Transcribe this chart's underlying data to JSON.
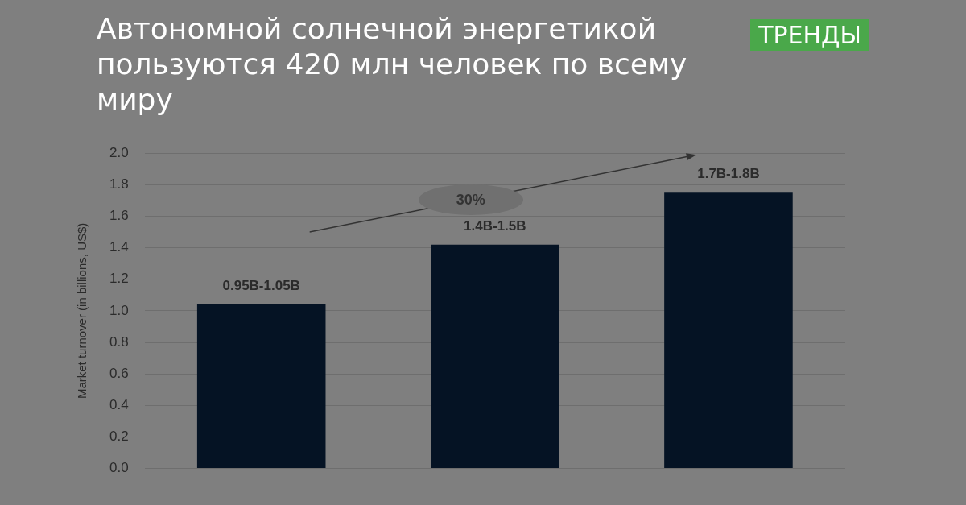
{
  "chart_data": {
    "type": "bar",
    "title": "Автономной солнечной энергетикой пользуются 420 млн человек по всему миру",
    "ylabel": "Market turnover (in billions, US$)",
    "categories": [
      null,
      null,
      null
    ],
    "values": [
      1.04,
      1.42,
      1.75
    ],
    "color": "#051324",
    "ylim": [
      0,
      2
    ],
    "yticks": [
      {
        "value": 0,
        "label": "0.0"
      },
      0.2,
      0.4,
      0.6,
      0.8,
      {
        "value": 1,
        "label": "1.0"
      },
      1.2,
      1.4,
      1.6,
      1.8,
      {
        "value": 2,
        "label": "2.0"
      }
    ],
    "grid": "y",
    "annotations": [
      {
        "text": "0.95B-1.05B",
        "y": 1.04
      },
      {
        "text": "1.4B-1.5B",
        "y": 1.42
      },
      {
        "text": "1.7B-1.8B",
        "y": 1.75
      },
      "30%",
      "ТРЕНДЫ"
    ]
  }
}
